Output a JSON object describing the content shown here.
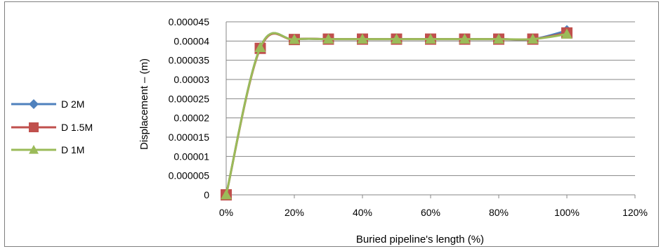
{
  "chart_data": {
    "type": "line",
    "xlabel": "Buried pipeline's length (%)",
    "ylabel": "Displacement – (m)",
    "x": [
      0,
      0.1,
      0.2,
      0.3,
      0.4,
      0.5,
      0.6,
      0.7,
      0.8,
      0.9,
      1.0
    ],
    "xlim": [
      0,
      1.2
    ],
    "ylim": [
      0,
      4.5e-05
    ],
    "x_ticks": [
      "0%",
      "20%",
      "40%",
      "60%",
      "80%",
      "100%",
      "120%"
    ],
    "y_ticks": [
      "0",
      "0.000005",
      "0.00001",
      "0.000015",
      "0.00002",
      "0.000025",
      "0.00003",
      "0.000035",
      "0.00004",
      "0.000045"
    ],
    "grid": "horizontal",
    "legend_position": "left",
    "series": [
      {
        "name": "D 2M",
        "color": "#4f81bd",
        "marker": "diamond",
        "values": [
          0,
          3.83e-05,
          4.04e-05,
          4.05e-05,
          4.05e-05,
          4.05e-05,
          4.05e-05,
          4.05e-05,
          4.05e-05,
          4.05e-05,
          4.27e-05
        ]
      },
      {
        "name": "D 1.5M",
        "color": "#c0504d",
        "marker": "square",
        "values": [
          0,
          3.81e-05,
          4.04e-05,
          4.05e-05,
          4.05e-05,
          4.05e-05,
          4.05e-05,
          4.05e-05,
          4.05e-05,
          4.05e-05,
          4.21e-05
        ]
      },
      {
        "name": "D 1M",
        "color": "#9bbb59",
        "marker": "triangle",
        "values": [
          0,
          3.83e-05,
          4.04e-05,
          4.05e-05,
          4.05e-05,
          4.05e-05,
          4.05e-05,
          4.05e-05,
          4.05e-05,
          4.05e-05,
          4.18e-05
        ]
      }
    ]
  }
}
